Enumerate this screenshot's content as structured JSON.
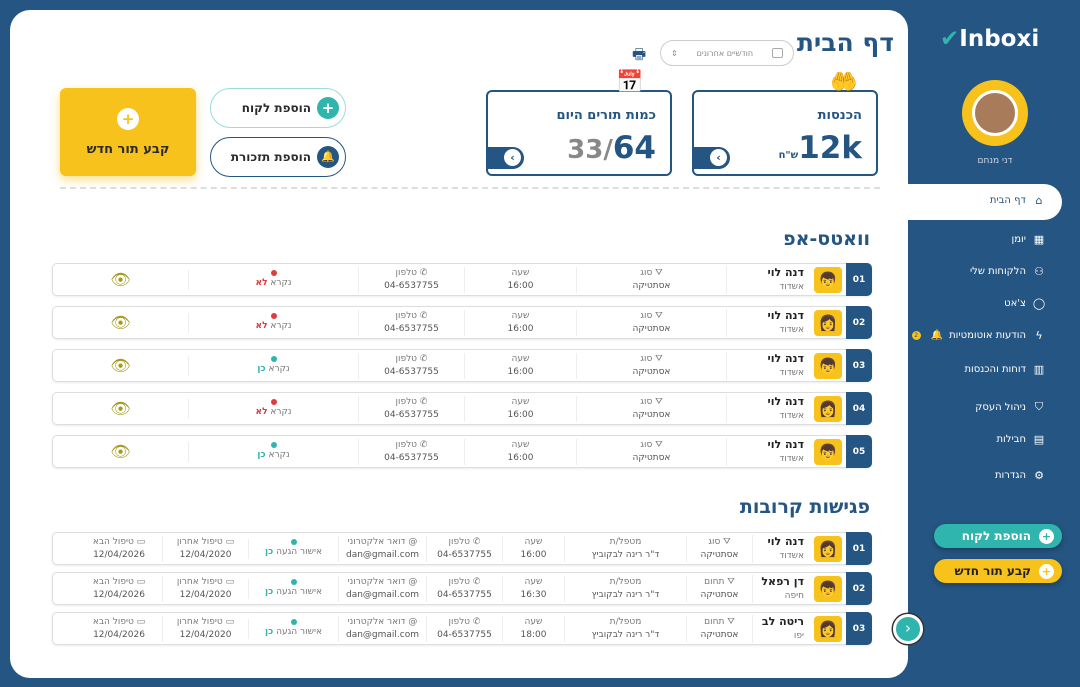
{
  "sidebar": {
    "logo": "Inboxi",
    "user_name": "דני מנחם",
    "items": [
      {
        "label": "דף הבית",
        "icon": "⌂"
      },
      {
        "label": "יומן",
        "icon": "▦"
      },
      {
        "label": "הלקוחות שלי",
        "icon": "⚇"
      },
      {
        "label": "צ'אט",
        "icon": "◯"
      },
      {
        "label": "הודעות אוטומטיות",
        "icon": "ϟ",
        "badge": "2"
      },
      {
        "label": "דוחות והכנסות",
        "icon": "▥"
      },
      {
        "label": "ניהול העסק",
        "icon": "⛉"
      },
      {
        "label": "חבילות",
        "icon": "▤"
      },
      {
        "label": "הגדרות",
        "icon": "⚙"
      }
    ],
    "add_client": "הוספת לקוח",
    "new_appointment": "קבע תור חדש"
  },
  "header": {
    "title": "דף הבית",
    "period": "חודשיים אחרונים"
  },
  "stats": {
    "income_label": "הכנסות",
    "income_value": "12k",
    "income_unit": "ש\"ח",
    "appts_label": "כמות תורים היום",
    "appts_value": "64",
    "appts_total": "33/"
  },
  "actions": {
    "add_client": "הוספת לקוח",
    "add_reminder": "הוספת תזכורת",
    "new_appointment": "קבע תור חדש"
  },
  "whatsapp": {
    "title": "וואטס-אפ",
    "labels": {
      "type": "סוג",
      "time": "שעה",
      "phone": "טלפון",
      "read": "נקרא"
    },
    "rows": [
      {
        "num": "01",
        "name": "דנה לוי",
        "city": "אשדוד",
        "type": "אסתטיקה",
        "time": "16:00",
        "phone": "04-6537755",
        "read": "לא",
        "read_status": "no",
        "avatar": "👦"
      },
      {
        "num": "02",
        "name": "דנה לוי",
        "city": "אשדוד",
        "type": "אסתטיקה",
        "time": "16:00",
        "phone": "04-6537755",
        "read": "לא",
        "read_status": "no",
        "avatar": "👩"
      },
      {
        "num": "03",
        "name": "דנה לוי",
        "city": "אשדוד",
        "type": "אסתטיקה",
        "time": "16:00",
        "phone": "04-6537755",
        "read": "כן",
        "read_status": "yes",
        "avatar": "👦"
      },
      {
        "num": "04",
        "name": "דנה לוי",
        "city": "אשדוד",
        "type": "אסתטיקה",
        "time": "16:00",
        "phone": "04-6537755",
        "read": "לא",
        "read_status": "no",
        "avatar": "👩"
      },
      {
        "num": "05",
        "name": "דנה לוי",
        "city": "אשדוד",
        "type": "אסתטיקה",
        "time": "16:00",
        "phone": "04-6537755",
        "read": "כן",
        "read_status": "yes",
        "avatar": "👦"
      }
    ]
  },
  "meetings": {
    "title": "פגישות קרובות",
    "labels": {
      "therapist": "מטפל/ת",
      "time": "שעה",
      "phone": "טלפון",
      "email": "דואר אלקטרוני",
      "approval": "אישור הגעה",
      "last": "טיפול אחרון",
      "next": "טיפול הבא"
    },
    "rows": [
      {
        "num": "01",
        "name": "דנה לוי",
        "city": "אשדוד",
        "type_label": "סוג",
        "type": "אסתטיקה",
        "therapist": "ד\"ר רינה לבקוביץ",
        "time": "16:00",
        "phone": "04-6537755",
        "email": "dan@gmail.com",
        "approval": "כן",
        "last": "12/04/2020",
        "next": "12/04/2026",
        "avatar": "👩"
      },
      {
        "num": "02",
        "name": "דן רפאל",
        "city": "חיפה",
        "type_label": "תחום",
        "type": "אסתטיקה",
        "therapist": "ד\"ר רינה לבקוביץ",
        "time": "16:30",
        "phone": "04-6537755",
        "email": "dan@gmail.com",
        "approval": "כן",
        "last": "12/04/2020",
        "next": "12/04/2026",
        "avatar": "👦"
      },
      {
        "num": "03",
        "name": "ריטה לב",
        "city": "יפו",
        "type_label": "תחום",
        "type": "אסתטיקה",
        "therapist": "ד\"ר רינה לבקוביץ",
        "time": "18:00",
        "phone": "04-6537755",
        "email": "dan@gmail.com",
        "approval": "כן",
        "last": "12/04/2020",
        "next": "12/04/2026",
        "avatar": "👩"
      }
    ]
  },
  "colors": {
    "primary": "#255582",
    "accent": "#f7c21b",
    "teal": "#2fb5ad",
    "red": "#e03c3c"
  }
}
